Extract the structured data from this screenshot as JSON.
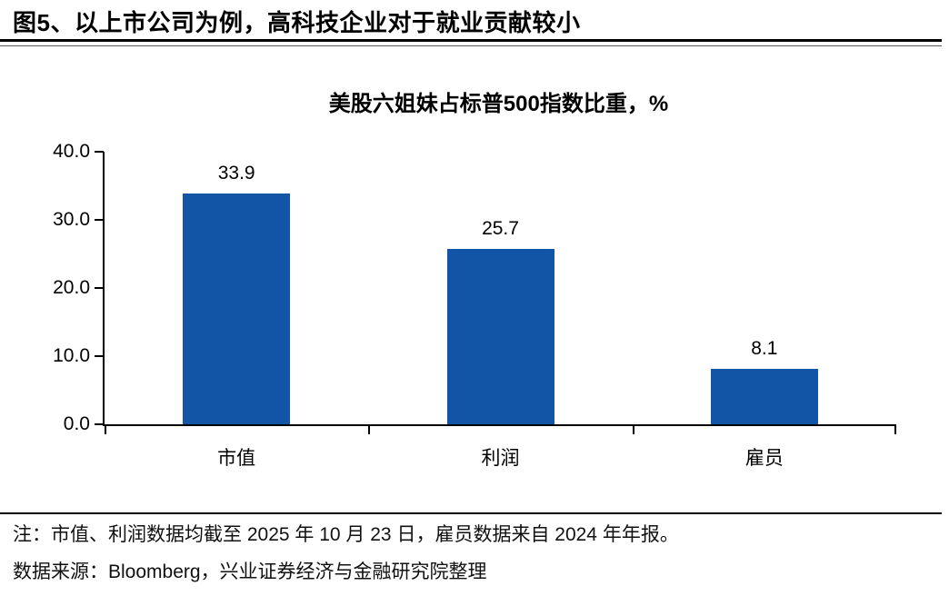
{
  "header": {
    "title": "图5、以上市公司为例，高科技企业对于就业贡献较小"
  },
  "chart_data": {
    "type": "bar",
    "title": "美股六姐妹占标普500指数比重，%",
    "categories": [
      "市值",
      "利润",
      "雇员"
    ],
    "values": [
      33.9,
      25.7,
      8.1
    ],
    "value_labels": [
      "33.9",
      "25.7",
      "8.1"
    ],
    "ylim": [
      0,
      40
    ],
    "yticks": [
      0,
      10,
      20,
      30,
      40
    ],
    "ytick_labels": [
      "0.0",
      "10.0",
      "20.0",
      "30.0",
      "40.0"
    ],
    "bar_color": "#1254A6",
    "axis_color": "#000000",
    "grid": false,
    "legend": "none"
  },
  "footer": {
    "note": "注：市值、利润数据均截至 2025 年 10 月 23 日，雇员数据来自 2024 年年报。",
    "source": "数据来源：Bloomberg，兴业证券经济与金融研究院整理"
  }
}
